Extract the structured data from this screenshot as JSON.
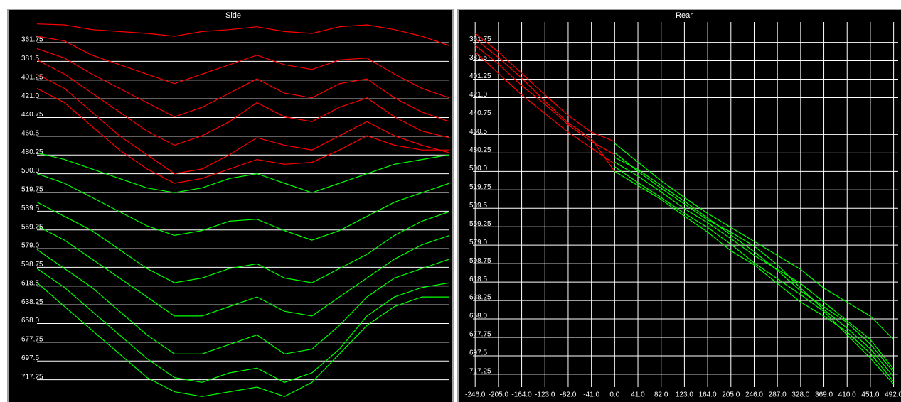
{
  "chart_data": [
    {
      "type": "line",
      "title": "Side",
      "grid": "y",
      "ylim": [
        740,
        340
      ],
      "yticks": [
        361.75,
        381.5,
        401.25,
        {
          "value": 421,
          "label": "421.0"
        },
        440.75,
        460.5,
        480.25,
        {
          "value": 500,
          "label": "500.0"
        },
        519.75,
        539.5,
        559.25,
        {
          "value": 579,
          "label": "579.0"
        },
        598.75,
        618.5,
        638.25,
        {
          "value": 658,
          "label": "658.0"
        },
        677.75,
        697.5,
        717.25
      ],
      "series": [
        {
          "color": "#ff0000",
          "values": [
            342,
            343,
            348,
            350,
            352,
            355,
            350,
            348,
            345,
            350,
            352,
            345,
            343,
            348,
            355,
            365
          ]
        },
        {
          "color": "#ff0000",
          "values": [
            355,
            360,
            375,
            385,
            395,
            405,
            395,
            385,
            375,
            385,
            390,
            380,
            378,
            395,
            410,
            420
          ]
        },
        {
          "color": "#ff0000",
          "values": [
            368,
            378,
            395,
            410,
            425,
            440,
            430,
            415,
            400,
            415,
            420,
            405,
            400,
            420,
            435,
            445
          ]
        },
        {
          "color": "#ff0000",
          "values": [
            380,
            395,
            415,
            435,
            455,
            470,
            460,
            445,
            425,
            440,
            445,
            430,
            420,
            440,
            455,
            462
          ]
        },
        {
          "color": "#ff0000",
          "values": [
            395,
            410,
            435,
            460,
            480,
            500,
            495,
            480,
            462,
            470,
            475,
            460,
            445,
            460,
            470,
            478
          ]
        },
        {
          "color": "#ff0000",
          "values": [
            410,
            425,
            450,
            475,
            495,
            510,
            505,
            495,
            485,
            490,
            488,
            475,
            460,
            470,
            475,
            475
          ]
        },
        {
          "color": "#00ff00",
          "values": [
            478,
            485,
            495,
            505,
            515,
            520,
            515,
            505,
            500,
            510,
            520,
            510,
            500,
            490,
            485,
            480
          ]
        },
        {
          "color": "#00ff00",
          "values": [
            500,
            510,
            525,
            540,
            555,
            565,
            560,
            550,
            548,
            560,
            570,
            560,
            545,
            530,
            520,
            510
          ]
        },
        {
          "color": "#00ff00",
          "values": [
            530,
            545,
            560,
            580,
            600,
            615,
            610,
            600,
            595,
            610,
            615,
            600,
            585,
            565,
            550,
            540
          ]
        },
        {
          "color": "#00ff00",
          "values": [
            555,
            570,
            590,
            610,
            630,
            650,
            650,
            640,
            630,
            645,
            650,
            630,
            610,
            590,
            575,
            565
          ]
        },
        {
          "color": "#00ff00",
          "values": [
            580,
            600,
            620,
            645,
            670,
            690,
            690,
            680,
            670,
            690,
            685,
            660,
            630,
            610,
            600,
            590
          ]
        },
        {
          "color": "#00ff00",
          "values": [
            600,
            620,
            645,
            670,
            695,
            715,
            720,
            710,
            705,
            720,
            710,
            685,
            650,
            630,
            620,
            615
          ]
        },
        {
          "color": "#00ff00",
          "values": [
            615,
            640,
            665,
            690,
            715,
            730,
            735,
            730,
            725,
            735,
            720,
            690,
            660,
            640,
            630,
            630
          ]
        }
      ]
    },
    {
      "type": "line",
      "title": "Rear",
      "grid": "both",
      "ylim": [
        731,
        340
      ],
      "xlim": [
        -250,
        500
      ],
      "yticks": [
        361.75,
        381.5,
        401.25,
        {
          "value": 421,
          "label": "421.0"
        },
        440.75,
        460.5,
        480.25,
        {
          "value": 500,
          "label": "500.0"
        },
        519.75,
        539.5,
        559.25,
        {
          "value": 579,
          "label": "579.0"
        },
        598.75,
        618.5,
        638.25,
        {
          "value": 658,
          "label": "658.0"
        },
        677.75,
        697.5,
        717.25
      ],
      "xticks": [
        {
          "value": -246,
          "label": "-246.0"
        },
        {
          "value": -205,
          "label": "-205.0"
        },
        {
          "value": -164,
          "label": "-164.0"
        },
        {
          "value": -123,
          "label": "-123.0"
        },
        {
          "value": -82,
          "label": "-82.0"
        },
        {
          "value": -41,
          "label": "-41.0"
        },
        {
          "value": 0,
          "label": "0.0"
        },
        {
          "value": 41,
          "label": "41.0"
        },
        {
          "value": 82,
          "label": "82.0"
        },
        {
          "value": 123,
          "label": "123.0"
        },
        {
          "value": 164,
          "label": "164.0"
        },
        {
          "value": 205,
          "label": "205.0"
        },
        {
          "value": 246,
          "label": "246.0"
        },
        {
          "value": 287,
          "label": "287.0"
        },
        {
          "value": 328,
          "label": "328.0"
        },
        {
          "value": 369,
          "label": "369.0"
        },
        {
          "value": 410,
          "label": "410.0"
        },
        {
          "value": 451,
          "label": "451.0"
        },
        {
          "value": 492,
          "label": "492.0"
        }
      ],
      "series": [
        {
          "color": "#ff0000",
          "x": [
            -246,
            -205,
            -164,
            -123,
            -82,
            -41,
            0
          ],
          "values": [
            352,
            372,
            395,
            418,
            440,
            458,
            468
          ]
        },
        {
          "color": "#ff0000",
          "x": [
            -246,
            -205,
            -164,
            -123,
            -82,
            -41,
            0
          ],
          "values": [
            365,
            385,
            408,
            428,
            450,
            468,
            482
          ]
        },
        {
          "color": "#ff0000",
          "x": [
            -246,
            -205,
            -164,
            -123,
            -82,
            -41,
            0
          ],
          "values": [
            372,
            395,
            418,
            438,
            458,
            475,
            492
          ]
        },
        {
          "color": "#ff0000",
          "x": [
            -246,
            -205,
            -164,
            -123,
            -82,
            -41,
            0
          ],
          "values": [
            358,
            378,
            400,
            425,
            448,
            465,
            500
          ]
        },
        {
          "color": "#00ff00",
          "x": [
            0,
            41,
            82,
            123,
            164,
            205,
            246,
            287,
            328,
            369,
            410,
            451,
            492
          ],
          "values": [
            470,
            490,
            510,
            528,
            545,
            560,
            575,
            590,
            605,
            625,
            640,
            655,
            680
          ]
        },
        {
          "color": "#00ff00",
          "x": [
            0,
            41,
            82,
            123,
            164,
            205,
            246,
            287,
            328,
            369,
            410,
            451,
            492
          ],
          "values": [
            490,
            505,
            522,
            540,
            555,
            572,
            590,
            605,
            620,
            640,
            660,
            680,
            712
          ]
        },
        {
          "color": "#00ff00",
          "x": [
            0,
            41,
            82,
            123,
            164,
            205,
            246,
            287,
            328,
            369,
            410,
            451,
            492
          ],
          "values": [
            500,
            515,
            530,
            548,
            565,
            585,
            600,
            620,
            640,
            655,
            672,
            695,
            725
          ]
        },
        {
          "color": "#00ff00",
          "x": [
            0,
            41,
            82,
            123,
            164,
            205,
            246,
            287,
            328,
            369,
            410,
            451,
            492
          ],
          "values": [
            480,
            500,
            518,
            535,
            552,
            565,
            580,
            600,
            625,
            648,
            668,
            690,
            720
          ]
        },
        {
          "color": "#00ff00",
          "x": [
            0,
            41,
            82,
            123,
            164,
            205,
            246,
            287,
            328,
            369,
            410,
            451,
            492
          ],
          "values": [
            495,
            512,
            528,
            545,
            560,
            578,
            598,
            615,
            632,
            650,
            675,
            700,
            728
          ]
        },
        {
          "color": "#00ff00",
          "x": [
            0,
            41,
            82,
            123,
            164,
            205,
            246,
            287,
            328,
            369,
            410,
            451,
            492
          ],
          "values": [
            485,
            498,
            515,
            532,
            550,
            568,
            586,
            606,
            628,
            645,
            662,
            685,
            715
          ]
        }
      ]
    }
  ]
}
